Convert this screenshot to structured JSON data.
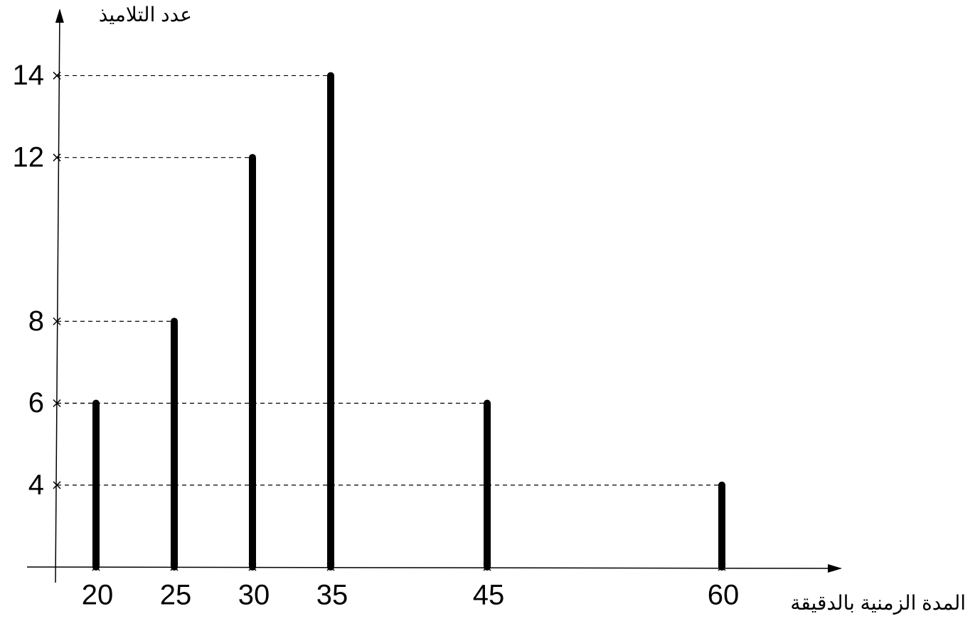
{
  "chart_data": {
    "type": "stem",
    "y_label": "عدد التلاميذ",
    "x_label": "المدة الزمنية بالدقيقة",
    "x": [
      20,
      25,
      30,
      35,
      45,
      60
    ],
    "values": [
      6,
      8,
      12,
      14,
      6,
      4
    ],
    "color": "#000000",
    "xlim": [
      17.5,
      67.5
    ],
    "ylim": [
      2,
      15.5
    ],
    "xticks": [
      20,
      25,
      30,
      35,
      45,
      60
    ],
    "yticks": [
      4,
      6,
      8,
      12,
      14
    ],
    "guides": true
  }
}
